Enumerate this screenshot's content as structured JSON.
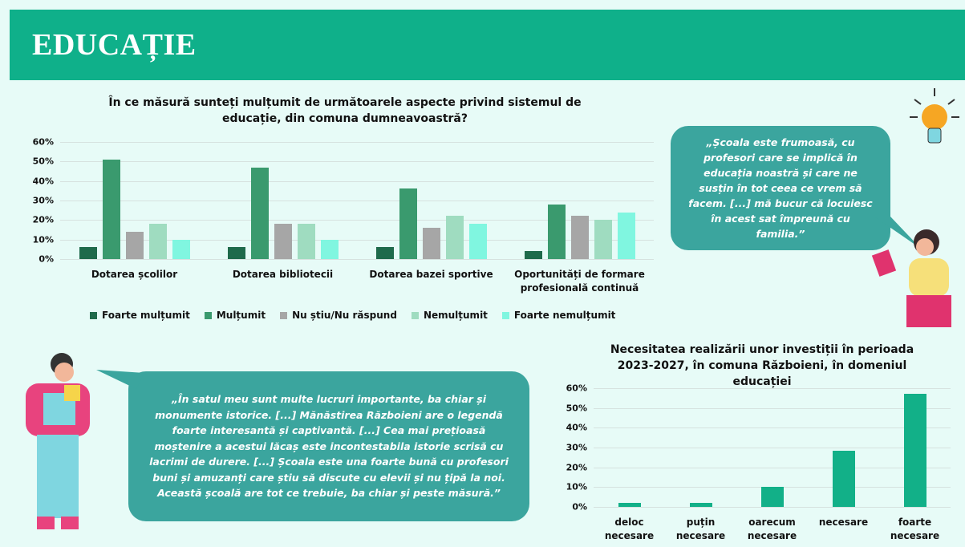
{
  "header": {
    "title": "EDUCAȚIE"
  },
  "quotes": [
    "„Școala este frumoasă, cu profesori care se implică în educația noastră și care ne susțin în tot ceea ce vrem să facem. [...] mă bucur că locuiesc în acest sat împreună cu familia.”",
    "„În satul meu sunt multe lucruri importante, ba chiar și monumente istorice. [...] Mănăstirea Războieni are o legendă foarte interesantă și captivantă. [...] Cea mai prețioasă moștenire a acestui lăcaș este incontestabila istorie scrisă cu lacrimi de durere. [...]  Școala este una foarte bună cu profesori buni și amuzanți care știu să discute cu elevii și nu țipă la noi. Această școală are tot ce trebuie, ba chiar și peste măsură.”"
  ],
  "chart_data": [
    {
      "type": "bar",
      "title": "În ce măsură sunteți mulțumit de următoarele aspecte privind sistemul de educație, din comuna dumneavoastră?",
      "categories": [
        "Dotarea școlilor",
        "Dotarea bibliotecii",
        "Dotarea bazei sportive",
        "Oportunități de formare profesională continuă"
      ],
      "series": [
        {
          "name": "Foarte mulțumit",
          "color": "#1f6a4b",
          "values": [
            6,
            6,
            6,
            4
          ]
        },
        {
          "name": "Mulțumit",
          "color": "#3a9a6e",
          "values": [
            51,
            47,
            36,
            28
          ]
        },
        {
          "name": "Nu știu/Nu răspund",
          "color": "#a6a6a6",
          "values": [
            14,
            18,
            16,
            22
          ]
        },
        {
          "name": "Nemulțumit",
          "color": "#9fdcc0",
          "values": [
            18,
            18,
            22,
            20
          ]
        },
        {
          "name": "Foarte nemulțumit",
          "color": "#80f6e0",
          "values": [
            10,
            10,
            18,
            24
          ]
        }
      ],
      "ylim": [
        0,
        60
      ],
      "yticks": [
        {
          "value": 0,
          "label": "0%"
        },
        {
          "value": 10,
          "label": "10%"
        },
        {
          "value": 20,
          "label": "20%"
        },
        {
          "value": 30,
          "label": "30%"
        },
        {
          "value": 40,
          "label": "40%"
        },
        {
          "value": 50,
          "label": "50%"
        },
        {
          "value": 60,
          "label": "60%"
        }
      ],
      "grid": true,
      "legend": "bottom"
    },
    {
      "type": "bar",
      "title": "Necesitatea realizării unor investiții în perioada 2023-2027, în comuna Războieni, în domeniul educației",
      "categories": [
        "deloc necesare",
        "puțin necesare",
        "oarecum necesare",
        "necesare",
        "foarte necesare"
      ],
      "values": [
        2,
        2,
        10,
        28.5,
        57
      ],
      "color": "#12b088",
      "ylim": [
        0,
        60
      ],
      "yticks": [
        {
          "value": 0,
          "label": "0%"
        },
        {
          "value": 10,
          "label": "10%"
        },
        {
          "value": 20,
          "label": "20%"
        },
        {
          "value": 30,
          "label": "30%"
        },
        {
          "value": 40,
          "label": "40%"
        },
        {
          "value": 50,
          "label": "50%"
        },
        {
          "value": 60,
          "label": "60%"
        }
      ],
      "grid": true
    }
  ]
}
